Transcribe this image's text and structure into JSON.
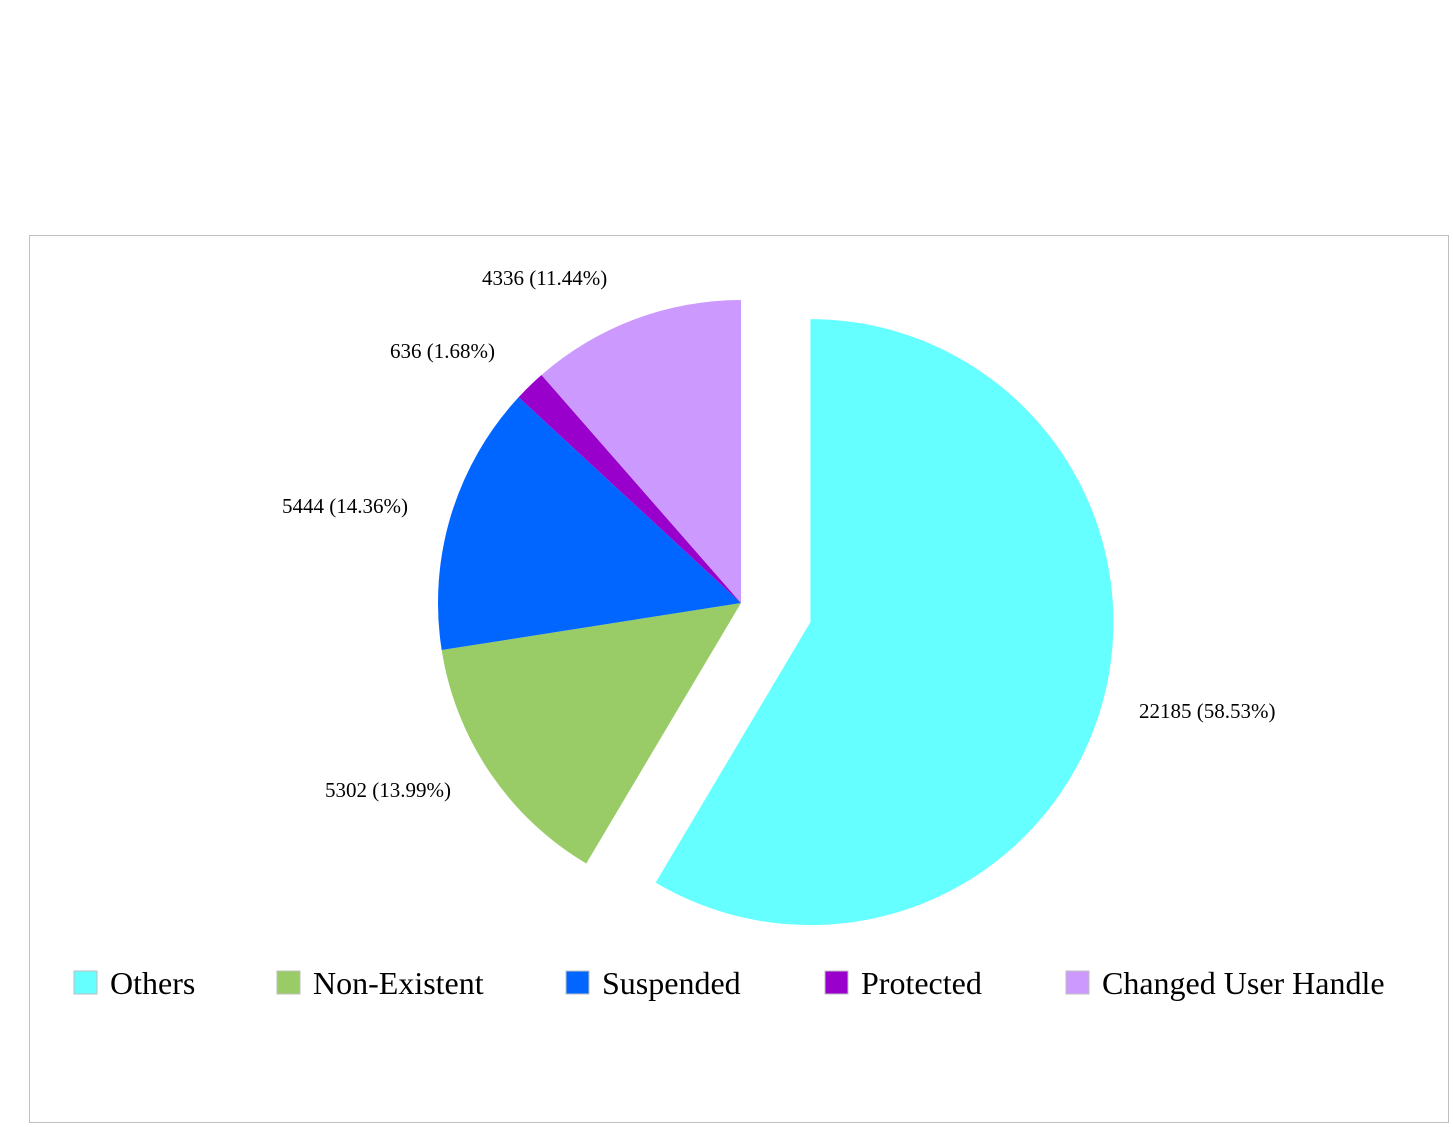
{
  "chart_data": {
    "type": "pie",
    "slices": [
      {
        "name": "Others",
        "value": 22185,
        "percent": "58.53%",
        "label": "22185 (58.53%)",
        "color": "#66ffff",
        "exploded": true
      },
      {
        "name": "Non-Existent",
        "value": 5302,
        "percent": "13.99%",
        "label": "5302 (13.99%)",
        "color": "#99cc66",
        "exploded": false
      },
      {
        "name": "Suspended",
        "value": 5444,
        "percent": "14.36%",
        "label": "5444 (14.36%)",
        "color": "#0066ff",
        "exploded": false
      },
      {
        "name": "Protected",
        "value": 636,
        "percent": "1.68%",
        "label": "636 (1.68%)",
        "color": "#9900cc",
        "exploded": false
      },
      {
        "name": "Changed User Handle",
        "value": 4336,
        "percent": "11.44%",
        "label": "4336 (11.44%)",
        "color": "#cc99ff",
        "exploded": false
      }
    ],
    "start_angle": "12 o'clock",
    "direction": "clockwise",
    "legend": {
      "position": "bottom",
      "orientation": "horizontal"
    }
  }
}
